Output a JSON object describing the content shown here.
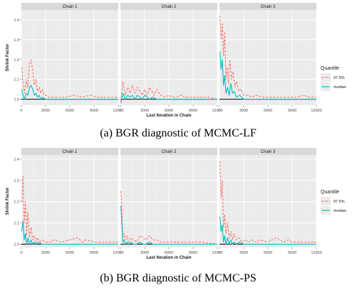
{
  "chart_data": [
    {
      "type": "line",
      "title": "",
      "caption": "(a) BGR diagnostic of MCMC-LF",
      "xlabel": "Last Iteration in Chain",
      "ylabel": "Shrink Factor",
      "xlim": [
        0,
        12000
      ],
      "ylim": [
        0.97,
        1.45
      ],
      "xticks": [
        0,
        3000,
        6000,
        9000,
        12000
      ],
      "xtick_labels": [
        "0",
        "3000",
        "6000",
        "9000",
        "12000"
      ],
      "yticks": [
        1.0,
        1.1,
        1.2,
        1.3,
        1.4
      ],
      "ytick_labels": [
        "1.0",
        "1.1",
        "1.2",
        "1.3",
        "1.4"
      ],
      "grid": true,
      "legend": {
        "title": "Quantile",
        "position": "right",
        "entries": [
          "97.5%",
          "median"
        ]
      },
      "panels": [
        {
          "name": "Chain 1",
          "series": [
            {
              "name": "97.5%",
              "color": "#F8766D",
              "dashed": true,
              "x": [
                50,
                200,
                400,
                600,
                800,
                1000,
                1200,
                1400,
                1600,
                1800,
                2000,
                2200,
                2400,
                2600,
                2800,
                3000,
                3400,
                3800,
                4500,
                5500,
                6500,
                7500,
                8500,
                9500,
                11000,
                12000
              ],
              "y": [
                1.16,
                1.08,
                1.03,
                1.1,
                1.06,
                1.18,
                1.2,
                1.15,
                1.07,
                1.1,
                1.04,
                1.06,
                1.03,
                1.05,
                1.02,
                1.02,
                1.01,
                1.01,
                1.01,
                1.01,
                1.02,
                1.01,
                1.02,
                1.01,
                1.01,
                1.01
              ]
            },
            {
              "name": "median",
              "color": "#00BFC4",
              "dashed": false,
              "x": [
                50,
                200,
                400,
                600,
                800,
                1000,
                1200,
                1400,
                1600,
                1800,
                2000,
                2200,
                2400,
                2600,
                3000,
                3500,
                4500,
                6000,
                7500,
                9000,
                10500,
                12000
              ],
              "y": [
                1.05,
                1.02,
                1.0,
                1.03,
                1.02,
                1.06,
                1.07,
                1.05,
                1.02,
                1.03,
                1.01,
                1.02,
                1.0,
                1.01,
                1.0,
                1.0,
                1.0,
                1.0,
                1.0,
                1.0,
                1.0,
                1.0
              ]
            }
          ]
        },
        {
          "name": "Chain 2",
          "series": [
            {
              "name": "97.5%",
              "color": "#F8766D",
              "dashed": true,
              "x": [
                50,
                300,
                600,
                900,
                1200,
                1500,
                1800,
                2100,
                2400,
                2700,
                3000,
                3300,
                3600,
                3900,
                4200,
                4500,
                5000,
                5500,
                6000,
                6500,
                7000,
                7500,
                8000,
                9000,
                10000,
                11000,
                12000
              ],
              "y": [
                0.99,
                1.09,
                1.02,
                1.06,
                1.03,
                1.07,
                1.03,
                1.06,
                1.04,
                1.02,
                1.05,
                1.02,
                1.06,
                1.04,
                1.02,
                1.05,
                1.02,
                1.01,
                1.02,
                1.01,
                1.01,
                1.02,
                1.01,
                1.01,
                1.01,
                1.01,
                1.0
              ]
            },
            {
              "name": "median",
              "color": "#00BFC4",
              "dashed": false,
              "x": [
                50,
                300,
                600,
                900,
                1200,
                1500,
                1800,
                2100,
                2400,
                2700,
                3000,
                3300,
                3600,
                4000,
                4500,
                5500,
                7000,
                9000,
                12000
              ],
              "y": [
                0.98,
                1.03,
                1.0,
                1.02,
                1.01,
                1.02,
                1.0,
                1.02,
                1.01,
                1.0,
                1.02,
                1.01,
                1.0,
                1.01,
                1.0,
                1.0,
                1.0,
                1.0,
                1.0
              ]
            }
          ]
        },
        {
          "name": "Chain 3",
          "series": [
            {
              "name": "97.5%",
              "color": "#F8766D",
              "dashed": true,
              "x": [
                50,
                200,
                350,
                500,
                650,
                800,
                950,
                1100,
                1300,
                1500,
                1700,
                1900,
                2100,
                2400,
                2700,
                3000,
                3500,
                4000,
                4500,
                5500,
                6500,
                7500,
                8500,
                9500,
                10500,
                11000,
                12000
              ],
              "y": [
                1.42,
                1.3,
                1.38,
                1.22,
                1.34,
                1.1,
                1.16,
                1.08,
                1.2,
                1.1,
                1.14,
                1.06,
                1.09,
                1.04,
                1.05,
                1.02,
                1.02,
                1.01,
                1.02,
                1.01,
                1.01,
                1.01,
                1.01,
                1.01,
                1.02,
                1.01,
                1.01
              ]
            },
            {
              "name": "median",
              "color": "#00BFC4",
              "dashed": false,
              "x": [
                50,
                200,
                350,
                500,
                650,
                800,
                1000,
                1200,
                1400,
                1600,
                1800,
                2100,
                2500,
                3000,
                4000,
                5500,
                7000,
                9000,
                12000
              ],
              "y": [
                1.24,
                1.15,
                1.2,
                1.07,
                1.12,
                1.03,
                1.06,
                1.02,
                1.08,
                1.03,
                1.04,
                1.01,
                1.02,
                1.0,
                1.0,
                1.0,
                1.0,
                1.0,
                1.0
              ]
            }
          ]
        }
      ]
    },
    {
      "type": "line",
      "title": "",
      "caption": "(b) BGR diagnostic of MCMC-PS",
      "xlabel": "Last Iteration in Chain",
      "ylabel": "Shrink Factor",
      "xlim": [
        0,
        12000
      ],
      "ylim": [
        0.985,
        1.42
      ],
      "xticks": [
        0,
        3000,
        6000,
        9000,
        12000
      ],
      "xtick_labels": [
        "0",
        "3000",
        "6000",
        "9000",
        "12000"
      ],
      "yticks": [
        1.0,
        1.1,
        1.2,
        1.3,
        1.4
      ],
      "ytick_labels": [
        "1.0",
        "1.1",
        "1.2",
        "1.3",
        "1.4"
      ],
      "grid": true,
      "legend": {
        "title": "Quantile",
        "position": "right",
        "entries": [
          "97.5%",
          "median"
        ]
      },
      "panels": [
        {
          "name": "Chain 1",
          "series": [
            {
              "name": "97.5%",
              "color": "#F8766D",
              "dashed": true,
              "x": [
                50,
                200,
                350,
                500,
                650,
                800,
                1000,
                1200,
                1400,
                1600,
                1800,
                2000,
                2300,
                2600,
                3000,
                3500,
                4000,
                5000,
                6000,
                7000,
                7500,
                8000,
                9000,
                10000,
                11000,
                12000
              ],
              "y": [
                1.2,
                1.32,
                1.1,
                1.2,
                1.04,
                1.15,
                1.03,
                1.08,
                1.02,
                1.04,
                1.01,
                1.03,
                1.01,
                1.02,
                1.01,
                1.01,
                1.02,
                1.01,
                1.02,
                1.03,
                1.01,
                1.02,
                1.01,
                1.01,
                1.01,
                1.01
              ]
            },
            {
              "name": "median",
              "color": "#00BFC4",
              "dashed": false,
              "x": [
                50,
                200,
                350,
                500,
                650,
                800,
                1000,
                1200,
                1400,
                1600,
                1800,
                2100,
                2500,
                3000,
                4000,
                5500,
                7000,
                9000,
                12000
              ],
              "y": [
                1.06,
                1.11,
                1.02,
                1.05,
                1.0,
                1.03,
                1.0,
                1.02,
                1.0,
                1.01,
                1.0,
                1.01,
                1.0,
                1.0,
                1.0,
                1.0,
                1.0,
                1.0,
                1.0
              ]
            }
          ]
        },
        {
          "name": "Chain 2",
          "series": [
            {
              "name": "97.5%",
              "color": "#F8766D",
              "dashed": true,
              "x": [
                50,
                150,
                300,
                450,
                600,
                800,
                1000,
                1300,
                1600,
                2000,
                2400,
                2800,
                3200,
                3600,
                4000,
                4500,
                5000,
                5500,
                6000,
                7000,
                8000,
                9000,
                10000,
                12000
              ],
              "y": [
                1.25,
                1.2,
                1.03,
                1.05,
                1.02,
                1.04,
                1.01,
                1.03,
                1.02,
                1.01,
                1.04,
                1.03,
                1.02,
                1.04,
                1.02,
                1.02,
                1.01,
                1.01,
                1.01,
                1.01,
                1.01,
                1.01,
                1.01,
                1.0
              ]
            },
            {
              "name": "median",
              "color": "#00BFC4",
              "dashed": false,
              "x": [
                50,
                150,
                300,
                450,
                600,
                800,
                1000,
                1300,
                1600,
                2000,
                2400,
                2800,
                3200,
                3600,
                4000,
                5000,
                6000,
                8000,
                10000,
                12000
              ],
              "y": [
                1.18,
                1.12,
                1.01,
                1.02,
                1.0,
                1.01,
                1.0,
                1.01,
                1.0,
                1.0,
                1.01,
                1.0,
                1.0,
                1.01,
                1.0,
                1.0,
                1.0,
                1.0,
                1.0,
                1.0
              ]
            }
          ]
        },
        {
          "name": "Chain 3",
          "series": [
            {
              "name": "97.5%",
              "color": "#F8766D",
              "dashed": true,
              "x": [
                50,
                200,
                350,
                500,
                650,
                800,
                1000,
                1200,
                1400,
                1600,
                1800,
                2100,
                2400,
                2800,
                3200,
                3600,
                4000,
                4500,
                5000,
                6000,
                6500,
                7000,
                8000,
                8500,
                9000,
                10000,
                11000,
                12000
              ],
              "y": [
                1.39,
                1.22,
                1.3,
                1.08,
                1.14,
                1.05,
                1.1,
                1.03,
                1.06,
                1.02,
                1.05,
                1.02,
                1.03,
                1.01,
                1.02,
                1.01,
                1.02,
                1.01,
                1.02,
                1.01,
                1.02,
                1.03,
                1.01,
                1.02,
                1.01,
                1.01,
                1.01,
                1.01
              ]
            },
            {
              "name": "median",
              "color": "#00BFC4",
              "dashed": false,
              "x": [
                50,
                200,
                350,
                500,
                650,
                800,
                1000,
                1200,
                1400,
                1600,
                1800,
                2100,
                2500,
                3000,
                4000,
                5500,
                7000,
                9000,
                12000
              ],
              "y": [
                1.13,
                1.06,
                1.09,
                1.01,
                1.04,
                1.0,
                1.03,
                1.0,
                1.02,
                1.0,
                1.01,
                1.0,
                1.01,
                1.0,
                1.0,
                1.0,
                1.0,
                1.0,
                1.0
              ]
            }
          ]
        }
      ]
    }
  ]
}
